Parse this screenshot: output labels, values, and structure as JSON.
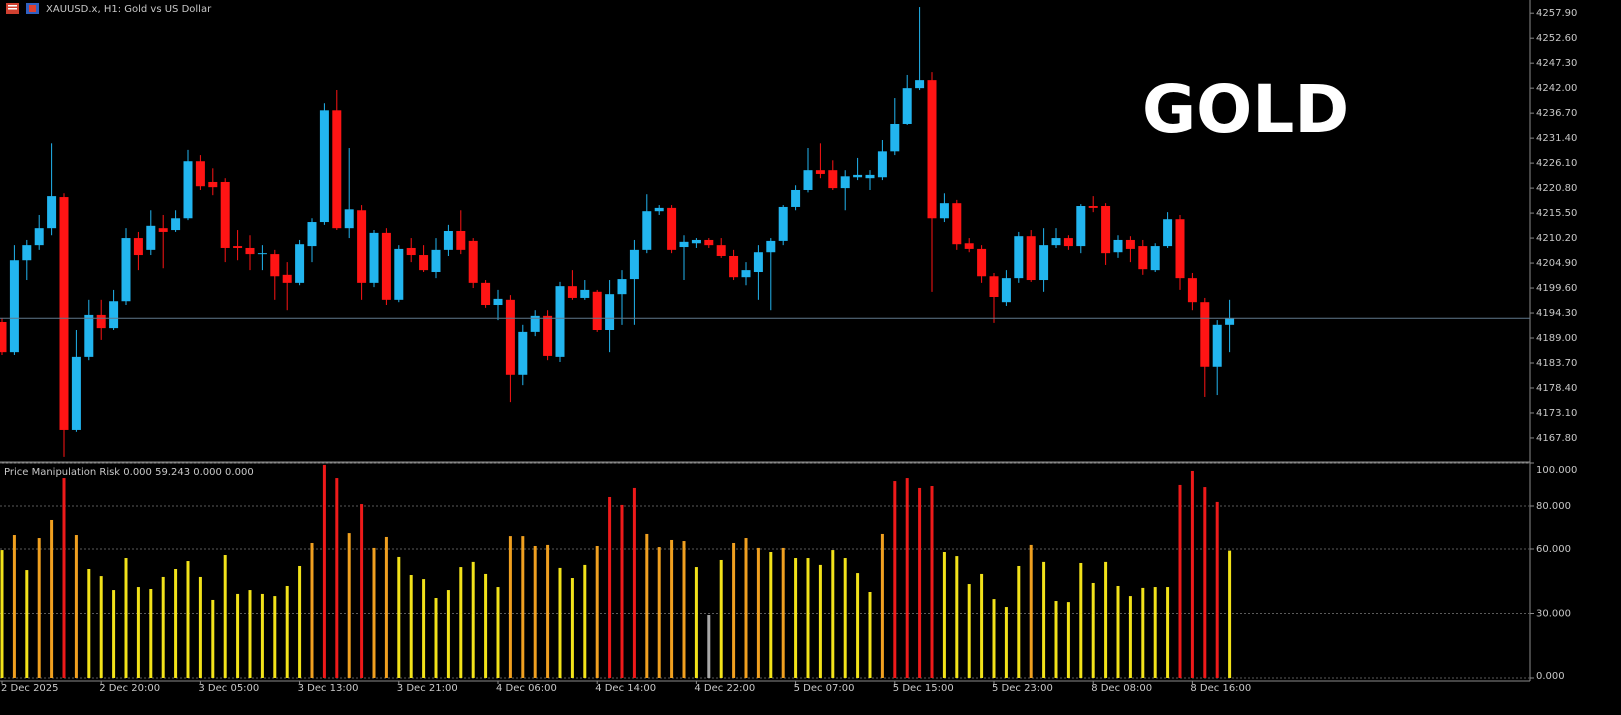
{
  "header": {
    "symbol_title": "XAUUSD.x, H1:  Gold vs US Dollar"
  },
  "watermark": "GOLD",
  "chart_data": [
    {
      "type": "candlestick",
      "up_color": "#22b5ef",
      "down_color": "#ff1414",
      "open": [
        4192.4,
        4186.0,
        4205.5,
        4208.7,
        4212.3,
        4218.9,
        4169.5,
        4185.0,
        4193.9,
        4191.1,
        4196.8,
        4210.2,
        4207.7,
        4212.3,
        4211.9,
        4214.4,
        4226.5,
        4222.1,
        4222.1,
        4208.5,
        4208.1,
        4206.8,
        4206.8,
        4202.4,
        4200.7,
        4208.5,
        4213.6,
        4237.3,
        4212.3,
        4216.1,
        4200.7,
        4211.3,
        4197.1,
        4208.1,
        4206.6,
        4203.0,
        4207.7,
        4211.7,
        4209.6,
        4200.7,
        4196.0,
        4197.1,
        4181.2,
        4190.3,
        4193.7,
        4185.0,
        4200.0,
        4197.5,
        4198.8,
        4190.7,
        4198.3,
        4201.5,
        4207.7,
        4215.9,
        4216.6,
        4208.3,
        4209.1,
        4209.8,
        4208.7,
        4206.4,
        4201.9,
        4203.0,
        4207.2,
        4209.6,
        4216.8,
        4220.4,
        4224.6,
        4224.6,
        4220.8,
        4223.1,
        4222.9,
        4223.1,
        4228.6,
        4234.4,
        4242.0,
        4243.7,
        4214.4,
        4217.6,
        4209.1,
        4207.9,
        4202.1,
        4196.6,
        4201.7,
        4210.6,
        4201.3,
        4208.7,
        4210.2,
        4208.5,
        4217.0,
        4217.0,
        4207.2,
        4209.8,
        4208.5,
        4203.4,
        4208.5,
        4214.2,
        4201.7,
        4196.6,
        4182.9,
        4191.8
      ],
      "high": [
        4193.2,
        4208.7,
        4209.8,
        4215.1,
        4230.3,
        4219.7,
        4190.7,
        4197.1,
        4197.1,
        4199.2,
        4212.3,
        4211.5,
        4216.1,
        4215.1,
        4216.1,
        4228.9,
        4227.8,
        4225.0,
        4222.9,
        4211.9,
        4210.8,
        4208.7,
        4207.7,
        4205.1,
        4209.8,
        4214.4,
        4238.8,
        4241.6,
        4229.3,
        4217.2,
        4211.9,
        4212.3,
        4208.7,
        4210.2,
        4208.7,
        4210.2,
        4213.0,
        4216.1,
        4210.2,
        4201.3,
        4199.2,
        4198.1,
        4191.8,
        4194.9,
        4194.9,
        4200.9,
        4203.4,
        4201.3,
        4199.2,
        4201.3,
        4203.4,
        4209.8,
        4219.5,
        4217.2,
        4217.2,
        4210.8,
        4210.2,
        4210.2,
        4210.2,
        4207.7,
        4205.1,
        4208.7,
        4210.2,
        4217.2,
        4221.4,
        4229.3,
        4230.3,
        4226.7,
        4224.6,
        4227.2,
        4224.6,
        4231.0,
        4239.9,
        4244.8,
        4259.2,
        4245.4,
        4219.7,
        4218.3,
        4210.2,
        4208.7,
        4202.8,
        4203.4,
        4211.5,
        4211.9,
        4212.3,
        4212.3,
        4210.8,
        4217.4,
        4219.1,
        4217.6,
        4210.8,
        4210.6,
        4209.8,
        4209.1,
        4215.7,
        4215.1,
        4202.8,
        4197.5,
        4192.8,
        4197.1
      ],
      "low": [
        4185.4,
        4185.4,
        4201.3,
        4207.7,
        4210.8,
        4163.8,
        4169.1,
        4184.3,
        4188.6,
        4190.7,
        4196.0,
        4203.4,
        4206.6,
        4203.8,
        4211.5,
        4214.0,
        4220.4,
        4219.3,
        4205.1,
        4205.5,
        4203.4,
        4203.4,
        4197.1,
        4194.9,
        4200.2,
        4205.1,
        4213.0,
        4211.9,
        4210.2,
        4197.1,
        4199.8,
        4196.0,
        4196.6,
        4205.1,
        4203.0,
        4201.7,
        4206.4,
        4206.8,
        4199.6,
        4195.4,
        4192.8,
        4175.4,
        4179.0,
        4189.4,
        4184.3,
        4183.9,
        4197.1,
        4197.1,
        4190.3,
        4186.0,
        4191.8,
        4191.8,
        4207.0,
        4215.1,
        4207.0,
        4201.3,
        4208.1,
        4208.1,
        4206.0,
        4201.3,
        4200.2,
        4197.1,
        4194.9,
        4208.7,
        4216.1,
        4219.9,
        4222.9,
        4220.4,
        4216.1,
        4222.5,
        4220.4,
        4222.5,
        4227.8,
        4234.2,
        4241.6,
        4198.8,
        4213.6,
        4207.7,
        4207.2,
        4200.7,
        4192.2,
        4195.8,
        4200.7,
        4200.9,
        4198.8,
        4208.1,
        4207.7,
        4207.0,
        4215.7,
        4204.5,
        4206.0,
        4205.1,
        4202.4,
        4203.0,
        4208.1,
        4199.2,
        4194.9,
        4176.5,
        4176.9,
        4186.0
      ],
      "close": [
        4186.0,
        4205.5,
        4208.7,
        4212.3,
        4219.1,
        4169.5,
        4185.0,
        4193.9,
        4191.1,
        4196.8,
        4210.2,
        4206.6,
        4212.8,
        4211.5,
        4214.4,
        4226.5,
        4221.2,
        4221.0,
        4208.1,
        4208.1,
        4206.8,
        4207.0,
        4202.1,
        4200.7,
        4208.9,
        4213.6,
        4237.3,
        4212.3,
        4216.3,
        4200.7,
        4211.3,
        4197.1,
        4207.9,
        4206.6,
        4203.4,
        4207.7,
        4211.7,
        4207.7,
        4200.7,
        4196.0,
        4197.3,
        4181.2,
        4190.3,
        4193.7,
        4185.2,
        4200.0,
        4197.5,
        4199.2,
        4190.7,
        4198.3,
        4201.5,
        4207.7,
        4215.9,
        4216.6,
        4207.7,
        4209.4,
        4209.8,
        4208.7,
        4206.4,
        4201.9,
        4203.4,
        4207.2,
        4209.6,
        4216.8,
        4220.4,
        4224.6,
        4223.8,
        4220.8,
        4223.3,
        4223.6,
        4223.6,
        4228.6,
        4234.4,
        4242.0,
        4243.7,
        4214.4,
        4217.6,
        4208.9,
        4207.9,
        4202.1,
        4197.7,
        4201.7,
        4210.6,
        4201.3,
        4208.7,
        4210.2,
        4208.5,
        4217.0,
        4216.6,
        4207.0,
        4209.8,
        4207.9,
        4203.6,
        4208.5,
        4214.2,
        4201.7,
        4196.6,
        4182.9,
        4191.8,
        4193.2
      ],
      "ylim": [
        4162.7,
        4260.7
      ],
      "yticks": [
        {
          "value": 4167.8,
          "label": "4167.80"
        },
        {
          "value": 4173.1,
          "label": "4173.10"
        },
        {
          "value": 4178.4,
          "label": "4178.40"
        },
        {
          "value": 4183.7,
          "label": "4183.70"
        },
        {
          "value": 4189.0,
          "label": "4189.00"
        },
        {
          "value": 4194.3,
          "label": "4194.30"
        },
        {
          "value": 4199.6,
          "label": "4199.60"
        },
        {
          "value": 4204.9,
          "label": "4204.90"
        },
        {
          "value": 4210.2,
          "label": "4210.20"
        },
        {
          "value": 4215.5,
          "label": "4215.50"
        },
        {
          "value": 4220.8,
          "label": "4220.80"
        },
        {
          "value": 4226.1,
          "label": "4226.10"
        },
        {
          "value": 4231.4,
          "label": "4231.40"
        },
        {
          "value": 4236.7,
          "label": "4236.70"
        },
        {
          "value": 4242.0,
          "label": "4242.00"
        },
        {
          "value": 4247.3,
          "label": "4247.30"
        },
        {
          "value": 4252.6,
          "label": "4252.60"
        },
        {
          "value": 4257.9,
          "label": "4257.90"
        }
      ],
      "grid": false
    },
    {
      "type": "bar",
      "title": "Price Manipulation Risk 0.000 59.243 0.000 0.000",
      "categories": [
        "2 Dec 2025",
        null,
        null,
        null,
        null,
        null,
        null,
        null,
        "2 Dec 20:00",
        null,
        null,
        null,
        null,
        null,
        null,
        null,
        "3 Dec 05:00",
        null,
        null,
        null,
        null,
        null,
        null,
        null,
        "3 Dec 13:00",
        null,
        null,
        null,
        null,
        null,
        null,
        null,
        "3 Dec 21:00",
        null,
        null,
        null,
        null,
        null,
        null,
        null,
        "4 Dec 06:00",
        null,
        null,
        null,
        null,
        null,
        null,
        null,
        "4 Dec 14:00",
        null,
        null,
        null,
        null,
        null,
        null,
        null,
        "4 Dec 22:00",
        null,
        null,
        null,
        null,
        null,
        null,
        null,
        "5 Dec 07:00",
        null,
        null,
        null,
        null,
        null,
        null,
        null,
        "5 Dec 15:00",
        null,
        null,
        null,
        null,
        null,
        null,
        null,
        "5 Dec 23:00",
        null,
        null,
        null,
        null,
        null,
        null,
        null,
        "8 Dec 08:00",
        null,
        null,
        null,
        null,
        null,
        null,
        null,
        "8 Dec 16:00",
        null,
        null,
        null
      ],
      "values": [
        59.5,
        66.5,
        50.2,
        65.1,
        73.5,
        93.0,
        66.5,
        50.7,
        47.4,
        40.9,
        55.8,
        42.3,
        41.4,
        47.0,
        50.7,
        54.4,
        47.0,
        36.3,
        57.2,
        39.1,
        40.9,
        39.1,
        38.1,
        42.8,
        52.1,
        62.8,
        99.1,
        93.0,
        67.4,
        80.9,
        60.5,
        65.6,
        56.3,
        47.9,
        46.0,
        37.2,
        40.9,
        51.6,
        54.0,
        48.4,
        42.3,
        66.0,
        66.0,
        61.4,
        61.9,
        51.2,
        46.5,
        52.6,
        61.4,
        84.2,
        80.5,
        88.4,
        67.0,
        60.9,
        64.2,
        63.7,
        51.6,
        29.3,
        54.9,
        62.8,
        65.1,
        60.5,
        58.6,
        60.5,
        55.8,
        55.8,
        52.6,
        59.5,
        55.8,
        48.8,
        40.0,
        67.0,
        91.6,
        93.0,
        88.4,
        89.3,
        58.6,
        56.7,
        43.7,
        48.4,
        36.7,
        33.0,
        52.1,
        61.9,
        54.0,
        35.8,
        35.3,
        53.5,
        44.2,
        54.0,
        42.8,
        38.1,
        41.9,
        42.3,
        42.3,
        89.8,
        96.3,
        88.8,
        81.9,
        59.243
      ],
      "colors": [
        "#f2e21a",
        "#f0a020",
        "#f2e21a",
        "#f0a020",
        "#f0a020",
        "#ee1a1a",
        "#f0a020",
        "#f2e21a",
        "#f2e21a",
        "#f2e21a",
        "#f2e21a",
        "#f2e21a",
        "#f2e21a",
        "#f2e21a",
        "#f2e21a",
        "#f2e21a",
        "#f2e21a",
        "#f2e21a",
        "#f2e21a",
        "#f2e21a",
        "#f2e21a",
        "#f2e21a",
        "#f2e21a",
        "#f2e21a",
        "#f2e21a",
        "#f0a020",
        "#ee1a1a",
        "#ee1a1a",
        "#f0a020",
        "#ee1a1a",
        "#f0a020",
        "#f0a020",
        "#f2e21a",
        "#f2e21a",
        "#f2e21a",
        "#f2e21a",
        "#f2e21a",
        "#f2e21a",
        "#f2e21a",
        "#f2e21a",
        "#f2e21a",
        "#f0a020",
        "#f0a020",
        "#f0a020",
        "#f0a020",
        "#f2e21a",
        "#f2e21a",
        "#f2e21a",
        "#f0a020",
        "#ee1a1a",
        "#ee1a1a",
        "#ee1a1a",
        "#f0a020",
        "#f0a020",
        "#f0a020",
        "#f0a020",
        "#f2e21a",
        "#a8a8a8",
        "#f2e21a",
        "#f0a020",
        "#f0a020",
        "#f0a020",
        "#f2e21a",
        "#f0a020",
        "#f2e21a",
        "#f2e21a",
        "#f2e21a",
        "#f2e21a",
        "#f2e21a",
        "#f2e21a",
        "#f2e21a",
        "#f0a020",
        "#ee1a1a",
        "#ee1a1a",
        "#ee1a1a",
        "#ee1a1a",
        "#f2e21a",
        "#f2e21a",
        "#f2e21a",
        "#f2e21a",
        "#f2e21a",
        "#f2e21a",
        "#f2e21a",
        "#f0a020",
        "#f2e21a",
        "#f2e21a",
        "#f2e21a",
        "#f2e21a",
        "#f2e21a",
        "#f2e21a",
        "#f2e21a",
        "#f2e21a",
        "#f2e21a",
        "#f2e21a",
        "#f2e21a",
        "#ee1a1a",
        "#ee1a1a",
        "#ee1a1a",
        "#ee1a1a",
        "#f2e21a"
      ],
      "ylim": [
        0,
        100
      ],
      "yticks": [
        {
          "value": 0,
          "label": "0.000"
        },
        {
          "value": 30,
          "label": "30.000"
        },
        {
          "value": 60,
          "label": "60.000"
        },
        {
          "value": 80,
          "label": "80.000"
        },
        {
          "value": 100,
          "label": "100.000"
        }
      ],
      "grid": true
    }
  ]
}
